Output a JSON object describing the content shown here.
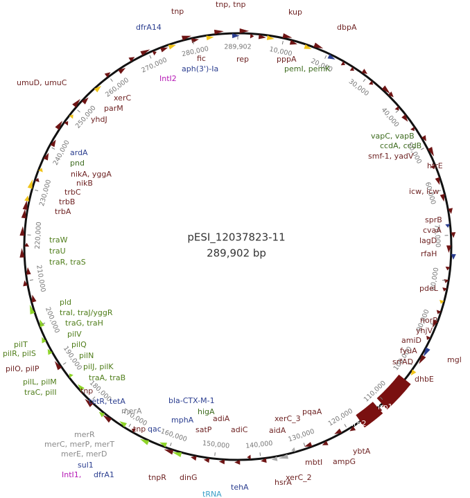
{
  "title": "pESI_12037823-11",
  "subtitle": "289,902 bp",
  "length": 289902,
  "ticks": [
    {
      "value": 10000,
      "label": "10,000"
    },
    {
      "value": 20000,
      "label": "20,000"
    },
    {
      "value": 30000,
      "label": "30,000"
    },
    {
      "value": 40000,
      "label": "40,000"
    },
    {
      "value": 50000,
      "label": "50,000"
    },
    {
      "value": 60000,
      "label": "60,000"
    },
    {
      "value": 70000,
      "label": "70,000"
    },
    {
      "value": 80000,
      "label": "80,000"
    },
    {
      "value": 90000,
      "label": "90,000"
    },
    {
      "value": 100000,
      "label": "100,000"
    },
    {
      "value": 110000,
      "label": "110,000"
    },
    {
      "value": 120000,
      "label": "120,000"
    },
    {
      "value": 130000,
      "label": "130,000"
    },
    {
      "value": 140000,
      "label": "140,000"
    },
    {
      "value": 150000,
      "label": "150,000"
    },
    {
      "value": 160000,
      "label": "160,000"
    },
    {
      "value": 170000,
      "label": "170,000"
    },
    {
      "value": 180000,
      "label": "180,000"
    },
    {
      "value": 190000,
      "label": "190,000"
    },
    {
      "value": 200000,
      "label": "200,000"
    },
    {
      "value": 210000,
      "label": "210,000"
    },
    {
      "value": 220000,
      "label": "220,000"
    },
    {
      "value": 230000,
      "label": "230,000"
    },
    {
      "value": 240000,
      "label": "240,000"
    },
    {
      "value": 250000,
      "label": "250,000"
    },
    {
      "value": 260000,
      "label": "260,000"
    },
    {
      "value": 270000,
      "label": "270,000"
    },
    {
      "value": 280000,
      "label": "280,000"
    },
    {
      "value": 289902,
      "label": "289,902"
    }
  ],
  "labels": [
    {
      "text": "tnp",
      "color": "#6e2323"
    },
    {
      "text": "tnp, tnp",
      "color": "#6e2323"
    },
    {
      "text": "kup",
      "color": "#6e2323"
    },
    {
      "text": "dbpA",
      "color": "#6e2323"
    },
    {
      "text": "dfrA14",
      "color": "#2a3d8f"
    },
    {
      "text": "fic",
      "color": "#6e2323"
    },
    {
      "text": "rep",
      "color": "#6e2323"
    },
    {
      "text": "pppA",
      "color": "#6e2323"
    },
    {
      "text": "pemI, pemK",
      "color": "#3d6b1e"
    },
    {
      "text": "aph(3')-Ia",
      "color": "#2a3d8f"
    },
    {
      "text": "IntI2",
      "color": "#b517b5"
    },
    {
      "text": "umuD, umuC",
      "color": "#6e2323"
    },
    {
      "text": "xerC",
      "color": "#6e2323"
    },
    {
      "text": "parM",
      "color": "#6e2323"
    },
    {
      "text": "yhdJ",
      "color": "#6e2323"
    },
    {
      "text": "ardA",
      "color": "#2a3d8f"
    },
    {
      "text": "pnd",
      "color": "#3d6b1e"
    },
    {
      "text": "nikA, yggA",
      "color": "#6e2323"
    },
    {
      "text": "nikB",
      "color": "#6e2323"
    },
    {
      "text": "trbC",
      "color": "#6e2323"
    },
    {
      "text": "trbB",
      "color": "#6e2323"
    },
    {
      "text": "trbA",
      "color": "#6e2323"
    },
    {
      "text": "traW",
      "color": "#4f7d1a"
    },
    {
      "text": "traU",
      "color": "#4f7d1a"
    },
    {
      "text": "traR, traS",
      "color": "#4f7d1a"
    },
    {
      "text": "pld",
      "color": "#4f7d1a"
    },
    {
      "text": "traI, traJ/yggR",
      "color": "#4f7d1a"
    },
    {
      "text": "traG, traH",
      "color": "#4f7d1a"
    },
    {
      "text": "pilV",
      "color": "#4f7d1a"
    },
    {
      "text": "pilQ",
      "color": "#4f7d1a"
    },
    {
      "text": "pilT",
      "color": "#4f7d1a"
    },
    {
      "text": "pilR, pilS",
      "color": "#4f7d1a"
    },
    {
      "text": "pilN",
      "color": "#4f7d1a"
    },
    {
      "text": "pilJ, pilK",
      "color": "#4f7d1a"
    },
    {
      "text": "pilO, pilP",
      "color": "#6e2323"
    },
    {
      "text": "traA, traB",
      "color": "#4f7d1a"
    },
    {
      "text": "pilL, pilM",
      "color": "#4f7d1a"
    },
    {
      "text": "traC, pilI",
      "color": "#4f7d1a"
    },
    {
      "text": "tnp",
      "color": "#6e2323"
    },
    {
      "text": "tetR, tetA",
      "color": "#2a3d8f"
    },
    {
      "text": "merA",
      "color": "#8a8a8a"
    },
    {
      "text": "tnp",
      "color": "#6e2323"
    },
    {
      "text": "qac",
      "color": "#2a3d8f"
    },
    {
      "text": "merR",
      "color": "#8a8a8a"
    },
    {
      "text": "merC, merP, merT",
      "color": "#8a8a8a"
    },
    {
      "text": "merE, merD",
      "color": "#8a8a8a"
    },
    {
      "text": "sul1",
      "color": "#2a3d8f"
    },
    {
      "text": "IntI1,",
      "color": "#b517b5"
    },
    {
      "text": "dfrA1",
      "color": "#2a3d8f"
    },
    {
      "text": "tnpR",
      "color": "#6e2323"
    },
    {
      "text": "bla-CTX-M-1",
      "color": "#2a3d8f"
    },
    {
      "text": "mphA",
      "color": "#2a3d8f"
    },
    {
      "text": "higA",
      "color": "#3d6b1e"
    },
    {
      "text": "satP",
      "color": "#6e2323"
    },
    {
      "text": "adiA",
      "color": "#6e2323"
    },
    {
      "text": "adiC",
      "color": "#6e2323"
    },
    {
      "text": "dinG",
      "color": "#6e2323"
    },
    {
      "text": "tRNA",
      "color": "#3aa0c8"
    },
    {
      "text": "tehA",
      "color": "#2a3d8f"
    },
    {
      "text": "hsrA",
      "color": "#6e2323"
    },
    {
      "text": "aidA",
      "color": "#6e2323"
    },
    {
      "text": "xerC_3",
      "color": "#6e2323"
    },
    {
      "text": "pqaA",
      "color": "#6e2323"
    },
    {
      "text": "xerC_2",
      "color": "#6e2323"
    },
    {
      "text": "mbtI",
      "color": "#6e2323"
    },
    {
      "text": "ampG",
      "color": "#6e2323"
    },
    {
      "text": "ybtA",
      "color": "#6e2323"
    },
    {
      "text": "irp2",
      "color": "#ffffff"
    },
    {
      "text": "irp1",
      "color": "#ffffff"
    },
    {
      "text": "dhbE",
      "color": "#6e2323"
    },
    {
      "text": "srfAD",
      "color": "#6e2323"
    },
    {
      "text": "fyuA",
      "color": "#6e2323"
    },
    {
      "text": "amiD",
      "color": "#6e2323"
    },
    {
      "text": "yhjV",
      "color": "#6e2323"
    },
    {
      "text": "mgl",
      "color": "#6e2323"
    },
    {
      "text": "norR",
      "color": "#6e2323"
    },
    {
      "text": "pdeL",
      "color": "#6e2323"
    },
    {
      "text": "rfaH",
      "color": "#6e2323"
    },
    {
      "text": "lagD",
      "color": "#6e2323"
    },
    {
      "text": "cvaA",
      "color": "#6e2323"
    },
    {
      "text": "sprB",
      "color": "#6e2323"
    },
    {
      "text": "icw, icw",
      "color": "#6e2323"
    },
    {
      "text": "htrE",
      "color": "#6e2323"
    },
    {
      "text": "smf-1, yadV",
      "color": "#6e2323"
    },
    {
      "text": "ccdA, ccdB",
      "color": "#3d6b1e"
    },
    {
      "text": "vapC, vapB",
      "color": "#3d6b1e"
    }
  ]
}
